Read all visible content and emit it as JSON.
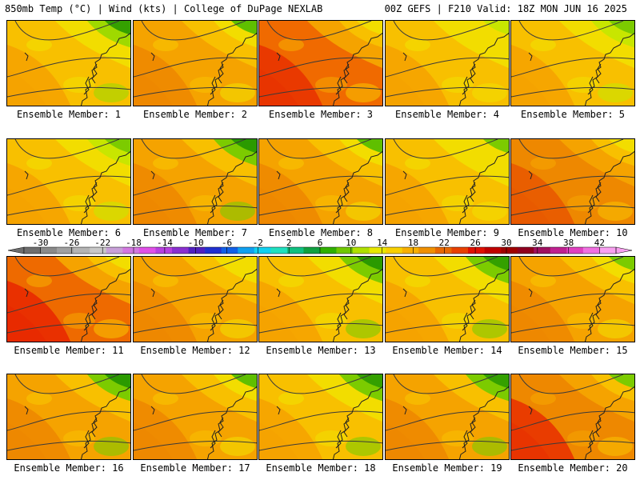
{
  "header": {
    "left": "850mb Temp (°C) | Wind (kts) | College of DuPage NEXLAB",
    "right": "00Z GEFS | F210 Valid: 18Z MON JUN 16 2025"
  },
  "panels": [
    {
      "label": "Ensemble Member: 1",
      "palette": [
        "#f5a300",
        "#f8c000",
        "#f2dd00",
        "#9fd900",
        "#34a000"
      ]
    },
    {
      "label": "Ensemble Member: 2",
      "palette": [
        "#ee8800",
        "#f5a300",
        "#f8c000",
        "#f2dd00",
        "#5fbf00"
      ]
    },
    {
      "label": "Ensemble Member: 3",
      "palette": [
        "#e83400",
        "#f06a00",
        "#f5a300",
        "#f8c000",
        "#f2dd00"
      ]
    },
    {
      "label": "Ensemble Member: 4",
      "palette": [
        "#f5a300",
        "#f8c000",
        "#f2dd00",
        "#f2dd00",
        "#c8e600"
      ]
    },
    {
      "label": "Ensemble Member: 5",
      "palette": [
        "#f5a300",
        "#f8c000",
        "#f2dd00",
        "#c8e600",
        "#7ccb00"
      ]
    },
    {
      "label": "Ensemble Member: 6",
      "palette": [
        "#f5a300",
        "#f8c000",
        "#f2dd00",
        "#c8e600",
        "#7ccb00"
      ]
    },
    {
      "label": "Ensemble Member: 7",
      "palette": [
        "#ee8800",
        "#f5a300",
        "#f8c000",
        "#7ccb00",
        "#2b9a00"
      ]
    },
    {
      "label": "Ensemble Member: 8",
      "palette": [
        "#ee8800",
        "#f5a300",
        "#f8c000",
        "#f2dd00",
        "#5fbf00"
      ]
    },
    {
      "label": "Ensemble Member: 9",
      "palette": [
        "#f5a300",
        "#f8c000",
        "#f2dd00",
        "#f2dd00",
        "#7ccb00"
      ]
    },
    {
      "label": "Ensemble Member: 10",
      "palette": [
        "#e85a00",
        "#ee8800",
        "#f5a300",
        "#f8c000",
        "#f2dd00"
      ]
    },
    {
      "label": "Ensemble Member: 11",
      "palette": [
        "#e82a00",
        "#ee6a00",
        "#f5a300",
        "#f8c000",
        "#f2dd00"
      ]
    },
    {
      "label": "Ensemble Member: 12",
      "palette": [
        "#ee8800",
        "#f5a300",
        "#f8c000",
        "#f2dd00",
        "#f2dd00"
      ]
    },
    {
      "label": "Ensemble Member: 13",
      "palette": [
        "#f5a300",
        "#f8c000",
        "#f2dd00",
        "#7ccb00",
        "#2b9a00"
      ]
    },
    {
      "label": "Ensemble Member: 14",
      "palette": [
        "#f5a300",
        "#f8c000",
        "#f2dd00",
        "#7ccb00",
        "#34a000"
      ]
    },
    {
      "label": "Ensemble Member: 15",
      "palette": [
        "#ee8800",
        "#f5a300",
        "#f8c000",
        "#f2dd00",
        "#7ccb00"
      ]
    },
    {
      "label": "Ensemble Member: 16",
      "palette": [
        "#ee8800",
        "#f5a300",
        "#f8c000",
        "#7ccb00",
        "#2b9a00"
      ]
    },
    {
      "label": "Ensemble Member: 17",
      "palette": [
        "#ee8800",
        "#f5a300",
        "#f8c000",
        "#f2dd00",
        "#5fbf00"
      ]
    },
    {
      "label": "Ensemble Member: 18",
      "palette": [
        "#f5a300",
        "#f8c000",
        "#f2dd00",
        "#7ccb00",
        "#34a000"
      ]
    },
    {
      "label": "Ensemble Member: 19",
      "palette": [
        "#ee8800",
        "#f5a300",
        "#f8c000",
        "#7ccb00",
        "#34a000"
      ]
    },
    {
      "label": "Ensemble Member: 20",
      "palette": [
        "#e83400",
        "#ee8800",
        "#f5a300",
        "#f8c000",
        "#7ccb00"
      ]
    }
  ],
  "colorbar": {
    "ticks": [
      "-30",
      "-26",
      "-22",
      "-18",
      "-14",
      "-10",
      "-6",
      "-2",
      "2",
      "6",
      "10",
      "14",
      "18",
      "22",
      "26",
      "30",
      "34",
      "38",
      "42"
    ],
    "colors": [
      "#6e6e6e",
      "#8a8a8a",
      "#a0a0a0",
      "#b4b4b4",
      "#c8c8c8",
      "#c8a0d8",
      "#d278e0",
      "#e050e8",
      "#b840e0",
      "#8a30d0",
      "#5020c0",
      "#2030d0",
      "#1060e8",
      "#10a0f0",
      "#10d0f0",
      "#20e0c0",
      "#10c080",
      "#10a040",
      "#30b000",
      "#70c800",
      "#b0e000",
      "#e8e800",
      "#f8d000",
      "#f8b000",
      "#f09000",
      "#e86800",
      "#e84000",
      "#e01000",
      "#c00000",
      "#a00000",
      "#900020",
      "#a01060",
      "#c02090",
      "#e040c0",
      "#f070e0",
      "#f8a0f0"
    ]
  }
}
